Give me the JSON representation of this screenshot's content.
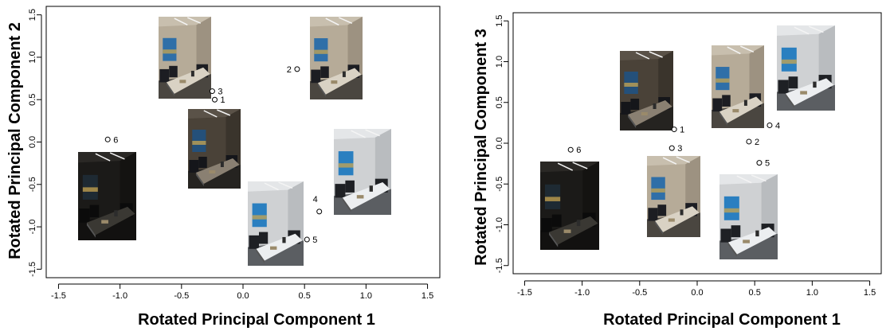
{
  "chart_data": [
    {
      "type": "scatter",
      "title": "",
      "xlabel": "Rotated Principal Component 1",
      "ylabel": "Rotated Principal Component 2",
      "xlim": [
        -1.6,
        1.6
      ],
      "ylim": [
        -1.6,
        1.6
      ],
      "xticks": [
        "-1.5",
        "-1.0",
        "-0.5",
        "0.0",
        "0.5",
        "1.0",
        "1.5"
      ],
      "yticks": [
        "-1.5",
        "-1.0",
        "-0.5",
        "0.0",
        "0.5",
        "1.0",
        "1.5"
      ],
      "grid": false,
      "points": [
        {
          "label": "1",
          "x": -0.23,
          "y": 0.5
        },
        {
          "label": "2",
          "x": 0.44,
          "y": 0.86
        },
        {
          "label": "3",
          "x": -0.25,
          "y": 0.6
        },
        {
          "label": "4",
          "x": 0.62,
          "y": -0.82
        },
        {
          "label": "5",
          "x": 0.52,
          "y": -1.15
        },
        {
          "label": "6",
          "x": -1.1,
          "y": 0.03
        }
      ],
      "thumbnails": [
        {
          "point": "1",
          "brightness": "dark"
        },
        {
          "point": "2",
          "brightness": "medium"
        },
        {
          "point": "3",
          "brightness": "medium"
        },
        {
          "point": "4",
          "brightness": "light"
        },
        {
          "point": "5",
          "brightness": "light"
        },
        {
          "point": "6",
          "brightness": "very-dark"
        }
      ]
    },
    {
      "type": "scatter",
      "title": "",
      "xlabel": "Rotated Principal Component 1",
      "ylabel": "Rotated Principal Component  3",
      "xlim": [
        -1.6,
        1.6
      ],
      "ylim": [
        -1.6,
        1.6
      ],
      "xticks": [
        "-1.5",
        "-1.0",
        "-0.5",
        "0.0",
        "0.5",
        "1.0",
        "1.5"
      ],
      "yticks": [
        "-1.5",
        "-1.0",
        "-0.5",
        "0.0",
        "0.5",
        "1.0",
        "1.5"
      ],
      "grid": false,
      "points": [
        {
          "label": "1",
          "x": -0.2,
          "y": 0.17
        },
        {
          "label": "2",
          "x": 0.45,
          "y": 0.02
        },
        {
          "label": "3",
          "x": -0.22,
          "y": -0.06
        },
        {
          "label": "4",
          "x": 0.63,
          "y": 0.22
        },
        {
          "label": "5",
          "x": 0.54,
          "y": -0.24
        },
        {
          "label": "6",
          "x": -1.1,
          "y": -0.08
        }
      ],
      "thumbnails": [
        {
          "point": "1",
          "brightness": "dark"
        },
        {
          "point": "2",
          "brightness": "medium"
        },
        {
          "point": "3",
          "brightness": "medium"
        },
        {
          "point": "4",
          "brightness": "light"
        },
        {
          "point": "5",
          "brightness": "light"
        },
        {
          "point": "6",
          "brightness": "very-dark"
        }
      ]
    }
  ],
  "palette": {
    "very-dark": {
      "wall": "#1b1a18",
      "wall2": "#141311",
      "ceiling": "#2a2825",
      "table": "#3a3833",
      "chairs": "#0b0b0b",
      "painting": "#1e2a33",
      "floor": "#121110"
    },
    "dark": {
      "wall": "#4a4238",
      "wall2": "#3a342c",
      "ceiling": "#5a5248",
      "table": "#8a8072",
      "chairs": "#15161a",
      "painting": "#24507a",
      "floor": "#252320"
    },
    "medium": {
      "wall": "#b6ab98",
      "wall2": "#9d9281",
      "ceiling": "#c8bfae",
      "table": "#d9d2c4",
      "chairs": "#1c1d22",
      "painting": "#2f6fa8",
      "floor": "#4a4640"
    },
    "light": {
      "wall": "#cfd1d3",
      "wall2": "#b9bcbf",
      "ceiling": "#e4e6e8",
      "table": "#eceef0",
      "chairs": "#1e2024",
      "painting": "#2a7fc0",
      "floor": "#5b5e62"
    }
  }
}
